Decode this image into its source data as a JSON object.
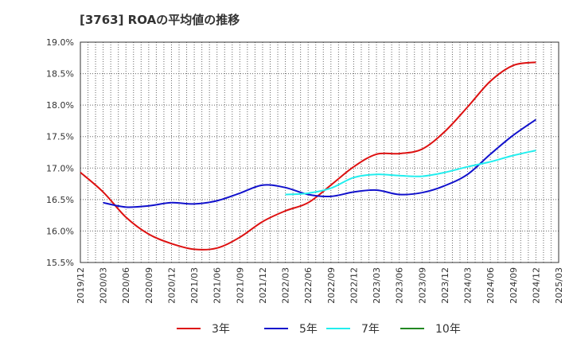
{
  "chart_data": {
    "type": "line",
    "title": "[3763]  ROAの平均値の推移",
    "xlabel": "",
    "ylabel": "",
    "ylim": [
      15.5,
      19.0
    ],
    "y_ticks": [
      15.5,
      16.0,
      16.5,
      17.0,
      17.5,
      18.0,
      18.5,
      19.0
    ],
    "y_tick_labels": [
      "15.5%",
      "16.0%",
      "16.5%",
      "17.0%",
      "17.5%",
      "18.0%",
      "18.5%",
      "19.0%"
    ],
    "x_tick_labels": [
      "2019/12",
      "2020/03",
      "2020/06",
      "2020/09",
      "2020/12",
      "2021/03",
      "2021/06",
      "2021/09",
      "2021/12",
      "2022/03",
      "2022/06",
      "2022/09",
      "2022/12",
      "2023/03",
      "2023/06",
      "2023/09",
      "2023/12",
      "2024/03",
      "2024/06",
      "2024/09",
      "2024/12",
      "2025/03"
    ],
    "grid": true,
    "legend_position": "bottom",
    "series": [
      {
        "name": "3年",
        "color": "#dd1111",
        "x": [
          "2019/12",
          "2020/03",
          "2020/06",
          "2020/09",
          "2020/12",
          "2021/03",
          "2021/06",
          "2021/09",
          "2021/12",
          "2022/03",
          "2022/06",
          "2022/09",
          "2022/12",
          "2023/03",
          "2023/06",
          "2023/09",
          "2023/12",
          "2024/03",
          "2024/06",
          "2024/09",
          "2024/12"
        ],
        "values": [
          16.93,
          16.62,
          16.22,
          15.95,
          15.8,
          15.71,
          15.73,
          15.9,
          16.15,
          16.32,
          16.45,
          16.73,
          17.02,
          17.22,
          17.23,
          17.3,
          17.58,
          17.97,
          18.38,
          18.63,
          18.68
        ]
      },
      {
        "name": "5年",
        "color": "#1111cc",
        "x": [
          "2020/03",
          "2020/06",
          "2020/09",
          "2020/12",
          "2021/03",
          "2021/06",
          "2021/09",
          "2021/12",
          "2022/03",
          "2022/06",
          "2022/09",
          "2022/12",
          "2023/03",
          "2023/06",
          "2023/09",
          "2023/12",
          "2024/03",
          "2024/06",
          "2024/09",
          "2024/12"
        ],
        "values": [
          16.45,
          16.38,
          16.4,
          16.45,
          16.43,
          16.48,
          16.6,
          16.73,
          16.69,
          16.58,
          16.55,
          16.62,
          16.65,
          16.58,
          16.61,
          16.72,
          16.9,
          17.22,
          17.52,
          17.77
        ]
      },
      {
        "name": "7年",
        "color": "#22eeee",
        "x": [
          "2022/03",
          "2022/06",
          "2022/09",
          "2022/12",
          "2023/03",
          "2023/06",
          "2023/09",
          "2023/12",
          "2024/03",
          "2024/06",
          "2024/09",
          "2024/12"
        ],
        "values": [
          16.58,
          16.6,
          16.68,
          16.85,
          16.9,
          16.88,
          16.87,
          16.93,
          17.02,
          17.1,
          17.2,
          17.28
        ]
      },
      {
        "name": "10年",
        "color": "#228822",
        "x": [],
        "values": []
      }
    ]
  }
}
